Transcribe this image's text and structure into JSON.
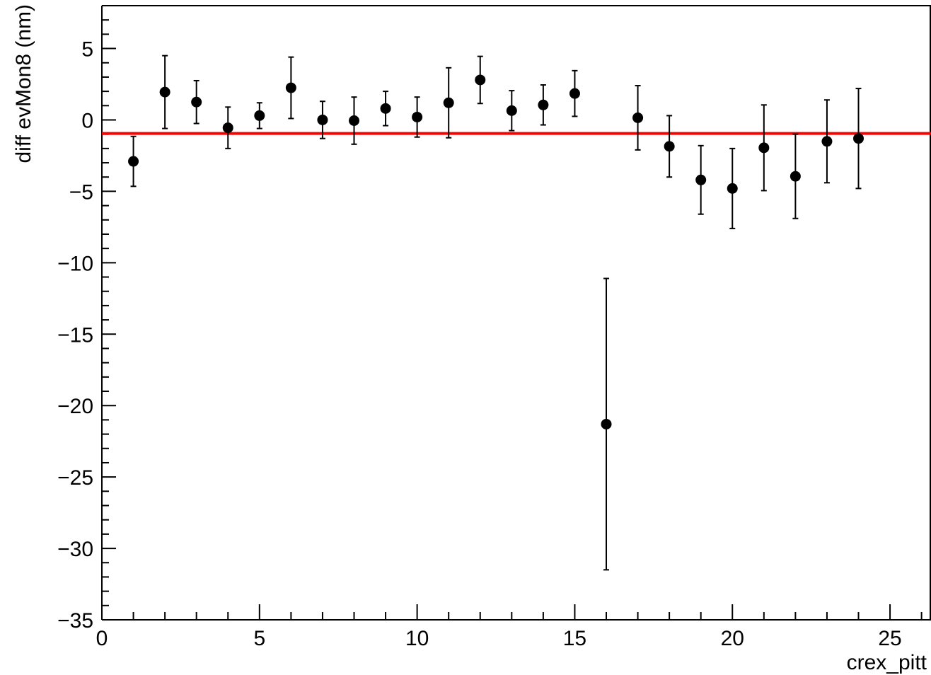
{
  "chart_data": {
    "type": "scatter",
    "title": "",
    "xlabel": "crex_pitt",
    "ylabel": "diff evMon8 (nm)",
    "xlim": [
      0,
      26.3
    ],
    "ylim": [
      -35,
      8
    ],
    "x_ticks": [
      0,
      5,
      10,
      15,
      20,
      25
    ],
    "x_tick_labels": [
      "0",
      "5",
      "10",
      "15",
      "20",
      "25"
    ],
    "y_ticks": [
      5,
      0,
      -5,
      -10,
      -15,
      -20,
      -25,
      -30,
      -35
    ],
    "y_tick_labels": [
      "5",
      "0",
      "−5",
      "−10",
      "−15",
      "−20",
      "−25",
      "−30",
      "−35"
    ],
    "grid": false,
    "points": [
      {
        "x": 1,
        "y": -2.9,
        "err": 1.75
      },
      {
        "x": 2,
        "y": 1.95,
        "err": 2.55
      },
      {
        "x": 3,
        "y": 1.25,
        "err": 1.5
      },
      {
        "x": 4,
        "y": -0.55,
        "err": 1.45
      },
      {
        "x": 5,
        "y": 0.3,
        "err": 0.9
      },
      {
        "x": 6,
        "y": 2.25,
        "err": 2.15
      },
      {
        "x": 7,
        "y": 0.0,
        "err": 1.3
      },
      {
        "x": 8,
        "y": -0.05,
        "err": 1.65
      },
      {
        "x": 9,
        "y": 0.8,
        "err": 1.2
      },
      {
        "x": 10,
        "y": 0.2,
        "err": 1.4
      },
      {
        "x": 11,
        "y": 1.2,
        "err": 2.45
      },
      {
        "x": 12,
        "y": 2.8,
        "err": 1.65
      },
      {
        "x": 13,
        "y": 0.65,
        "err": 1.4
      },
      {
        "x": 14,
        "y": 1.05,
        "err": 1.4
      },
      {
        "x": 15,
        "y": 1.85,
        "err": 1.6
      },
      {
        "x": 16,
        "y": -21.3,
        "err": 10.2
      },
      {
        "x": 17,
        "y": 0.15,
        "err": 2.25
      },
      {
        "x": 18,
        "y": -1.85,
        "err": 2.15
      },
      {
        "x": 19,
        "y": -4.2,
        "err": 2.4
      },
      {
        "x": 20,
        "y": -4.8,
        "err": 2.8
      },
      {
        "x": 21,
        "y": -1.95,
        "err": 3.0
      },
      {
        "x": 22,
        "y": -3.95,
        "err": 2.95
      },
      {
        "x": 23,
        "y": -1.5,
        "err": 2.9
      },
      {
        "x": 24,
        "y": -1.3,
        "err": 3.5
      }
    ],
    "fit_line": {
      "y": -0.95,
      "color": "#ff0000"
    },
    "marker_color": "#000000"
  }
}
